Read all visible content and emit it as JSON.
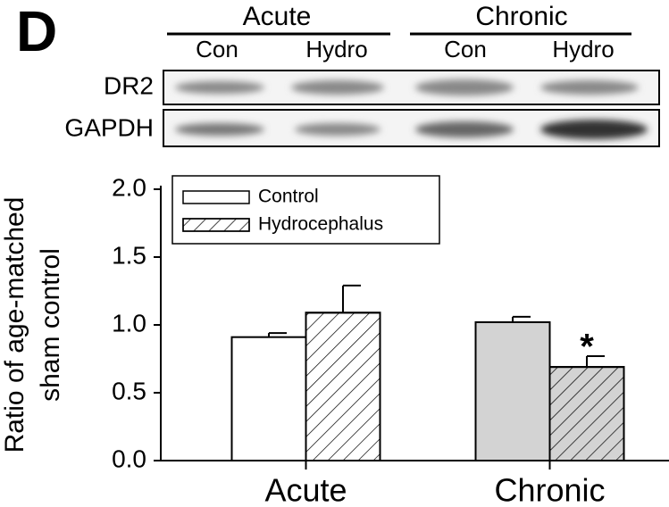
{
  "panel_label": "D",
  "blot": {
    "groups": [
      "Acute",
      "Chronic"
    ],
    "lanes": [
      "Con",
      "Hydro",
      "Con",
      "Hydro"
    ],
    "rows": [
      "DR2",
      "GAPDH"
    ]
  },
  "chart_data": {
    "type": "bar",
    "y_label": [
      "Ratio of age-matched",
      "sham control"
    ],
    "categories": [
      "Acute",
      "Chronic"
    ],
    "series": [
      {
        "name": "Control",
        "color": "#ffffff",
        "bar_colors": [
          "#ffffff",
          "#d3d3d3"
        ],
        "hatch": false,
        "values": [
          0.91,
          1.02
        ],
        "errors": [
          0.03,
          0.04
        ]
      },
      {
        "name": "Hydrocephalus",
        "color": "#ffffff",
        "bar_colors": [
          "#ffffff",
          "#d3d3d3"
        ],
        "hatch": true,
        "values": [
          1.09,
          0.69
        ],
        "errors": [
          0.2,
          0.08
        ]
      }
    ],
    "annotations": [
      {
        "text": "*",
        "series": 1,
        "category": 1
      }
    ],
    "ylim": [
      0,
      2
    ],
    "yticks": [
      {
        "value": 0,
        "label": "0.0"
      },
      {
        "value": 0.5,
        "label": "0.5"
      },
      {
        "value": 1,
        "label": "1.0"
      },
      {
        "value": 1.5,
        "label": "1.5"
      },
      {
        "value": 2,
        "label": "2.0"
      }
    ],
    "legend": "top-left"
  }
}
